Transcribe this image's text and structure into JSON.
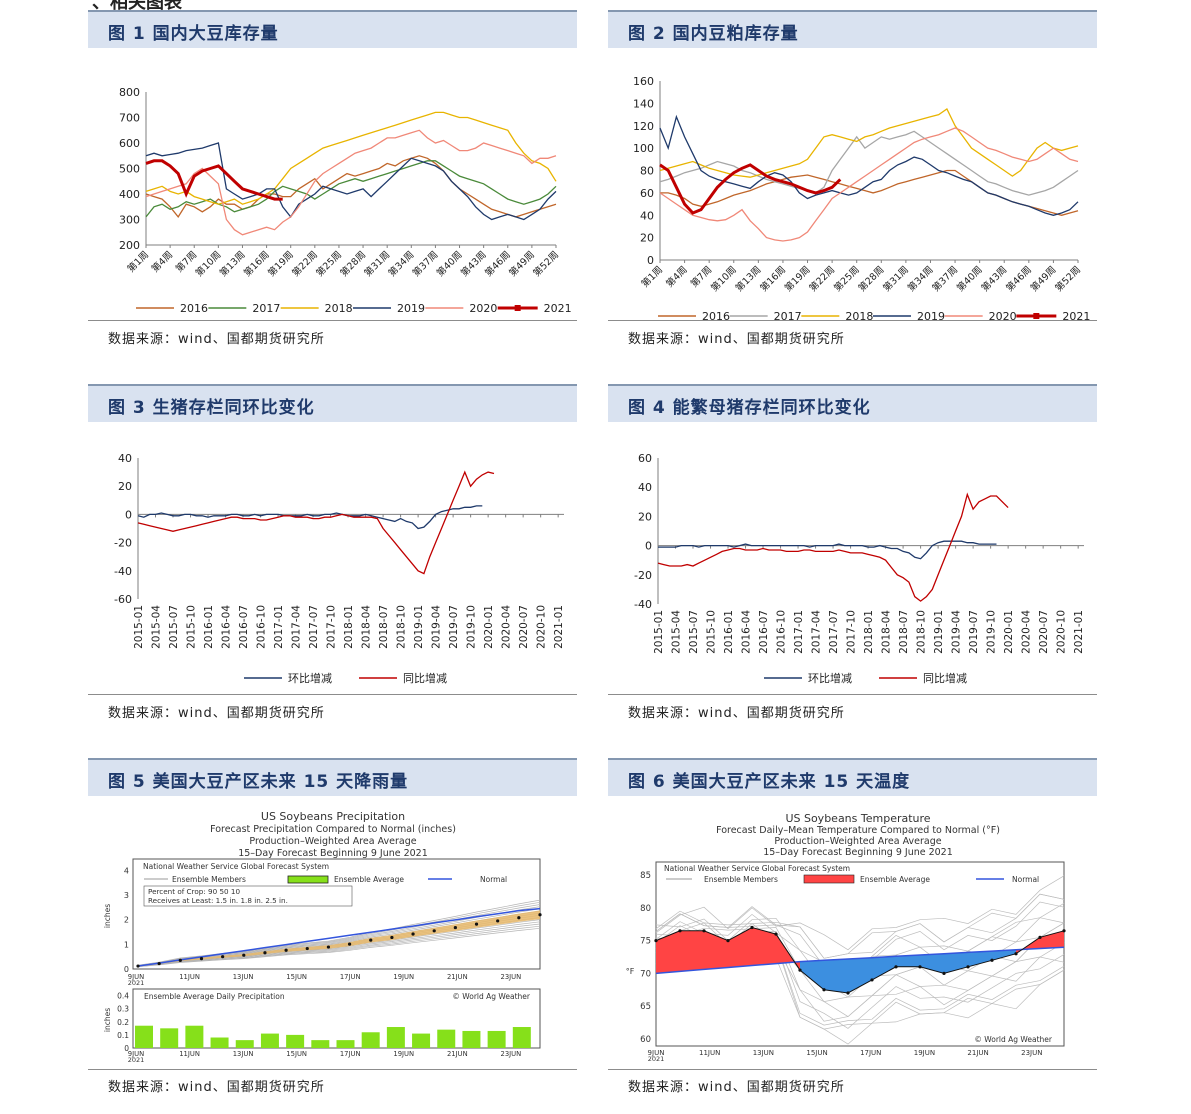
{
  "page": {
    "heading": "、相关图表"
  },
  "source_text": "数据来源：wind、国都期货研究所",
  "week_ticks": [
    "第1周",
    "第4周",
    "第7周",
    "第10周",
    "第13周",
    "第16周",
    "第19周",
    "第22周",
    "第25周",
    "第28周",
    "第31周",
    "第34周",
    "第37周",
    "第40周",
    "第43周",
    "第46周",
    "第49周",
    "第52周"
  ],
  "month_ticks": [
    "2015-01",
    "2015-04",
    "2015-07",
    "2015-10",
    "2016-01",
    "2016-04",
    "2016-07",
    "2016-10",
    "2017-01",
    "2017-04",
    "2017-07",
    "2017-10",
    "2018-01",
    "2018-04",
    "2018-07",
    "2018-10",
    "2019-01",
    "2019-04",
    "2019-07",
    "2019-10",
    "2020-01",
    "2020-04",
    "2020-07",
    "2020-10",
    "2021-01"
  ],
  "chart_data": [
    {
      "id": "fig1",
      "type": "line",
      "title": "图 1  国内大豆库存量",
      "x_axis": "week",
      "ylim": [
        200,
        800
      ],
      "yticks": [
        200,
        300,
        400,
        500,
        600,
        700,
        800
      ],
      "series": [
        {
          "name": "2016",
          "color": "#c0662a",
          "values": [
            400,
            390,
            380,
            350,
            310,
            360,
            350,
            330,
            350,
            380,
            360,
            360,
            340,
            350,
            380,
            400,
            400,
            390,
            390,
            420,
            440,
            460,
            420,
            440,
            460,
            480,
            470,
            480,
            490,
            500,
            520,
            510,
            530,
            540,
            550,
            540,
            520,
            490,
            450,
            420,
            400,
            380,
            360,
            340,
            330,
            320,
            310,
            320,
            330,
            340,
            350,
            360
          ]
        },
        {
          "name": "2017",
          "color": "#4a8a3a",
          "values": [
            310,
            350,
            360,
            340,
            350,
            370,
            360,
            370,
            380,
            360,
            350,
            330,
            340,
            350,
            360,
            380,
            410,
            430,
            420,
            410,
            400,
            380,
            400,
            420,
            440,
            450,
            460,
            450,
            460,
            470,
            480,
            490,
            500,
            510,
            520,
            530,
            530,
            510,
            490,
            470,
            460,
            450,
            440,
            420,
            400,
            380,
            370,
            360,
            370,
            380,
            400,
            430
          ]
        },
        {
          "name": "2018",
          "color": "#e8b400",
          "values": [
            410,
            420,
            430,
            410,
            400,
            410,
            390,
            380,
            370,
            360,
            370,
            380,
            360,
            370,
            380,
            400,
            420,
            460,
            500,
            520,
            540,
            560,
            580,
            590,
            600,
            610,
            620,
            630,
            640,
            650,
            660,
            670,
            680,
            690,
            700,
            710,
            720,
            720,
            710,
            700,
            700,
            690,
            680,
            670,
            660,
            650,
            600,
            560,
            530,
            520,
            500,
            450
          ]
        },
        {
          "name": "2019",
          "color": "#1f3a6b",
          "values": [
            550,
            560,
            550,
            555,
            560,
            570,
            575,
            580,
            590,
            600,
            420,
            400,
            380,
            390,
            400,
            420,
            420,
            350,
            310,
            360,
            380,
            400,
            430,
            420,
            410,
            400,
            410,
            420,
            390,
            420,
            450,
            480,
            510,
            540,
            530,
            520,
            510,
            490,
            450,
            420,
            390,
            350,
            320,
            300,
            310,
            320,
            310,
            300,
            320,
            340,
            380,
            410
          ]
        },
        {
          "name": "2020",
          "color": "#f08878",
          "values": [
            390,
            400,
            410,
            420,
            430,
            440,
            480,
            500,
            470,
            440,
            300,
            260,
            240,
            250,
            260,
            270,
            260,
            290,
            310,
            350,
            400,
            450,
            480,
            500,
            520,
            540,
            560,
            570,
            580,
            600,
            620,
            620,
            630,
            640,
            650,
            620,
            600,
            610,
            590,
            570,
            570,
            580,
            600,
            590,
            580,
            570,
            560,
            550,
            520,
            540,
            540,
            550
          ]
        },
        {
          "name": "2021",
          "color": "#c00000",
          "values": [
            520,
            530,
            530,
            510,
            480,
            400,
            470,
            490,
            500,
            510,
            480,
            450,
            420,
            410,
            400,
            390,
            380,
            380
          ]
        }
      ]
    },
    {
      "id": "fig2",
      "type": "line",
      "title": "图 2  国内豆粕库存量",
      "x_axis": "week",
      "ylim": [
        0,
        160
      ],
      "yticks": [
        0,
        20,
        40,
        60,
        80,
        100,
        120,
        140,
        160
      ],
      "series": [
        {
          "name": "2016",
          "color": "#c0662a",
          "values": [
            60,
            60,
            58,
            55,
            50,
            48,
            50,
            52,
            55,
            58,
            60,
            62,
            65,
            68,
            70,
            72,
            74,
            75,
            76,
            74,
            72,
            70,
            68,
            66,
            64,
            62,
            60,
            62,
            65,
            68,
            70,
            72,
            74,
            76,
            78,
            80,
            80,
            75,
            70,
            65,
            60,
            58,
            55,
            52,
            50,
            48,
            46,
            44,
            42,
            40,
            42,
            44
          ]
        },
        {
          "name": "2017",
          "color": "#a6a6a6",
          "values": [
            70,
            72,
            75,
            78,
            80,
            82,
            85,
            88,
            86,
            84,
            80,
            78,
            75,
            72,
            70,
            68,
            66,
            64,
            62,
            60,
            65,
            80,
            90,
            100,
            110,
            100,
            105,
            110,
            108,
            110,
            112,
            115,
            110,
            105,
            100,
            95,
            90,
            85,
            80,
            75,
            70,
            68,
            65,
            62,
            60,
            58,
            60,
            62,
            65,
            70,
            75,
            80
          ]
        },
        {
          "name": "2018",
          "color": "#e8b400",
          "values": [
            80,
            82,
            84,
            86,
            88,
            85,
            82,
            80,
            78,
            76,
            75,
            74,
            76,
            78,
            80,
            82,
            84,
            86,
            90,
            100,
            110,
            112,
            110,
            108,
            106,
            110,
            112,
            115,
            118,
            120,
            122,
            124,
            126,
            128,
            130,
            135,
            120,
            110,
            100,
            95,
            90,
            85,
            80,
            75,
            80,
            90,
            100,
            105,
            100,
            98,
            100,
            102
          ]
        },
        {
          "name": "2019",
          "color": "#1f3a6b",
          "values": [
            118,
            100,
            128,
            110,
            95,
            80,
            75,
            72,
            70,
            68,
            66,
            64,
            70,
            75,
            78,
            76,
            70,
            60,
            55,
            58,
            60,
            62,
            60,
            58,
            60,
            65,
            70,
            72,
            80,
            85,
            88,
            92,
            90,
            85,
            80,
            78,
            75,
            72,
            70,
            65,
            60,
            58,
            55,
            52,
            50,
            48,
            45,
            42,
            40,
            42,
            45,
            52
          ]
        },
        {
          "name": "2020",
          "color": "#f08878",
          "values": [
            60,
            55,
            50,
            45,
            40,
            38,
            36,
            35,
            36,
            40,
            45,
            35,
            28,
            20,
            18,
            17,
            18,
            20,
            25,
            35,
            45,
            55,
            60,
            65,
            70,
            75,
            80,
            85,
            90,
            95,
            100,
            105,
            108,
            110,
            112,
            115,
            118,
            115,
            110,
            105,
            100,
            98,
            95,
            92,
            90,
            88,
            90,
            95,
            100,
            95,
            90,
            88
          ]
        },
        {
          "name": "2021",
          "color": "#c00000",
          "values": [
            85,
            80,
            65,
            50,
            42,
            45,
            55,
            65,
            72,
            78,
            82,
            85,
            80,
            75,
            72,
            70,
            68,
            65,
            62,
            60,
            62,
            65,
            72
          ]
        }
      ]
    },
    {
      "id": "fig3",
      "type": "line",
      "title": "图 3  生猪存栏同环比变化",
      "x_axis": "month",
      "ylim": [
        -60,
        40
      ],
      "yticks": [
        -60,
        -40,
        -20,
        0,
        20,
        40
      ],
      "series": [
        {
          "name": "环比增减",
          "color": "#1f3a6b",
          "values": [
            -1,
            -2,
            0,
            0,
            1,
            0,
            -1,
            -1,
            0,
            0,
            -1,
            -1,
            -2,
            -1,
            -1,
            -1,
            0,
            0,
            -1,
            -1,
            0,
            -1,
            0,
            0,
            0,
            -1,
            -1,
            -1,
            -1,
            0,
            -1,
            -1,
            0,
            0,
            1,
            0,
            -1,
            -1,
            -1,
            0,
            -1,
            -2,
            -3,
            -4,
            -5,
            -3,
            -5,
            -6,
            -10,
            -9,
            -5,
            0,
            2,
            3,
            4,
            4,
            5,
            5,
            6,
            6
          ]
        },
        {
          "name": "同比增减",
          "color": "#c00000",
          "values": [
            -6,
            -7,
            -8,
            -9,
            -10,
            -11,
            -12,
            -11,
            -10,
            -9,
            -8,
            -7,
            -6,
            -5,
            -4,
            -3,
            -2,
            -2,
            -3,
            -3,
            -3,
            -4,
            -4,
            -3,
            -2,
            -1,
            -1,
            -2,
            -2,
            -2,
            -3,
            -3,
            -2,
            -2,
            -1,
            0,
            -1,
            -2,
            -2,
            -2,
            -2,
            -3,
            -10,
            -15,
            -20,
            -25,
            -30,
            -35,
            -40,
            -42,
            -30,
            -20,
            -10,
            0,
            10,
            20,
            30,
            20,
            25,
            28,
            30,
            29
          ]
        }
      ]
    },
    {
      "id": "fig4",
      "type": "line",
      "title": "图 4  能繁母猪存栏同环比变化",
      "x_axis": "month",
      "ylim": [
        -40,
        60
      ],
      "yticks": [
        -40,
        -20,
        0,
        20,
        40,
        60
      ],
      "series": [
        {
          "name": "环比增减",
          "color": "#1f3a6b",
          "values": [
            -1,
            -1,
            -1,
            -1,
            0,
            0,
            0,
            -1,
            0,
            0,
            0,
            0,
            0,
            -1,
            0,
            1,
            0,
            0,
            0,
            0,
            0,
            0,
            0,
            0,
            0,
            0,
            -1,
            0,
            0,
            0,
            0,
            1,
            0,
            0,
            0,
            0,
            -1,
            -1,
            0,
            -1,
            -2,
            -2,
            -4,
            -5,
            -8,
            -9,
            -5,
            0,
            2,
            3,
            3,
            3,
            3,
            2,
            2,
            1,
            1,
            1,
            1
          ]
        },
        {
          "name": "同比增减",
          "color": "#c00000",
          "values": [
            -12,
            -13,
            -14,
            -14,
            -14,
            -13,
            -14,
            -12,
            -10,
            -8,
            -6,
            -4,
            -3,
            -2,
            -2,
            -3,
            -3,
            -3,
            -2,
            -3,
            -3,
            -3,
            -4,
            -4,
            -4,
            -3,
            -3,
            -4,
            -4,
            -4,
            -4,
            -3,
            -4,
            -5,
            -5,
            -5,
            -6,
            -7,
            -8,
            -10,
            -15,
            -20,
            -22,
            -25,
            -35,
            -38,
            -35,
            -30,
            -20,
            -10,
            0,
            10,
            20,
            35,
            25,
            30,
            32,
            34,
            34,
            30,
            26
          ]
        }
      ]
    }
  ],
  "fig5": {
    "title": "图 5  美国大豆产区未来 15 天降雨量",
    "header": [
      "US Soybeans Precipitation",
      "Forecast Precipitation Compared to Normal (inches)",
      "Production–Weighted Area Average",
      "15–Day Forecast Beginning 9 June 2021"
    ],
    "legend_title": "National Weather Service Global Forecast System",
    "legend_items": [
      "Ensemble Members",
      "Ensemble Average",
      "Normal"
    ],
    "crop_table": [
      "Percent of Crop:  90     50     10",
      "Receives at Least: 1.5 in.  1.8 in.  2.5 in."
    ],
    "y_label": "inches",
    "yticks": [
      "0",
      "1",
      "2",
      "3",
      "4"
    ],
    "xticks": [
      "9JUN 2021",
      "11JUN",
      "13JUN",
      "15JUN",
      "17JUN",
      "19JUN",
      "21JUN",
      "23JUN"
    ],
    "sub_title": "Ensemble Average Daily Precipitation",
    "credit": "© World Ag Weather",
    "sub_yticks": [
      "0",
      "0.1",
      "0.2",
      "0.3",
      "0.4"
    ],
    "daily_values": [
      0.17,
      0.15,
      0.17,
      0.08,
      0.06,
      0.11,
      0.1,
      0.06,
      0.06,
      0.12,
      0.16,
      0.11,
      0.14,
      0.13,
      0.13,
      0.16
    ],
    "ensemble_average": [
      0.12,
      0.22,
      0.35,
      0.42,
      0.5,
      0.56,
      0.66,
      0.76,
      0.83,
      0.89,
      1.01,
      1.17,
      1.28,
      1.42,
      1.55,
      1.68,
      1.82,
      1.95,
      2.08,
      2.2
    ],
    "normal": [
      0.12,
      0.24,
      0.37,
      0.49,
      0.62,
      0.74,
      0.87,
      0.99,
      1.12,
      1.24,
      1.37,
      1.49,
      1.62,
      1.74,
      1.87,
      1.99,
      2.12,
      2.24,
      2.37,
      2.45
    ]
  },
  "fig6": {
    "title": "图 6  美国大豆产区未来 15 天温度",
    "header": [
      "US Soybeans Temperature",
      "Forecast Daily–Mean Temperature Compared to Normal (°F)",
      "Production–Weighted Area Average",
      "15–Day Forecast Beginning 9 June 2021"
    ],
    "legend_title": "National Weather Service Global Forecast System",
    "legend_items": [
      "Ensemble Members",
      "Ensemble Average",
      "Normal"
    ],
    "y_label": "°F",
    "yticks": [
      "60",
      "65",
      "70",
      "75",
      "80",
      "85"
    ],
    "xticks": [
      "9JUN 2021",
      "11JUN",
      "13JUN",
      "15JUN",
      "17JUN",
      "19JUN",
      "21JUN",
      "23JUN"
    ],
    "credit": "© World Ag Weather",
    "ensemble_average": [
      75,
      76.5,
      76.5,
      75,
      77,
      76,
      70.5,
      67.5,
      67,
      69,
      71,
      71,
      70,
      71,
      72,
      73,
      75.5,
      76.5
    ],
    "normal": [
      70,
      70.3,
      70.6,
      70.9,
      71.2,
      71.5,
      71.8,
      72,
      72.2,
      72.4,
      72.6,
      72.8,
      73,
      73.2,
      73.4,
      73.6,
      73.8,
      74
    ]
  }
}
